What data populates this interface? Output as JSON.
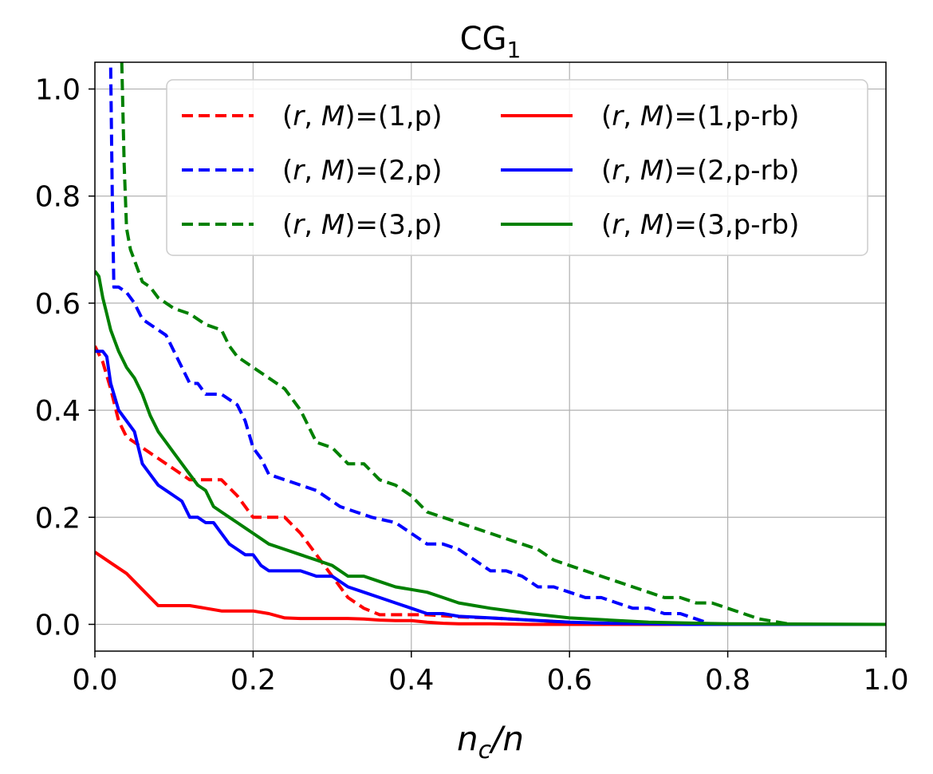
{
  "chart_data": {
    "type": "line",
    "title": "CG",
    "title_subscript": "1",
    "xlabel": "n_c/n",
    "ylabel": "",
    "xlim": [
      0.0,
      1.0
    ],
    "ylim": [
      -0.05,
      1.05
    ],
    "xticks": [
      0.0,
      0.2,
      0.4,
      0.6,
      0.8,
      1.0
    ],
    "xtick_labels": [
      "0.0",
      "0.2",
      "0.4",
      "0.6",
      "0.8",
      "1.0"
    ],
    "yticks": [
      0.0,
      0.2,
      0.4,
      0.6,
      0.8,
      1.0
    ],
    "ytick_labels": [
      "0.0",
      "0.2",
      "0.4",
      "0.6",
      "0.8",
      "1.0"
    ],
    "grid": true,
    "legend_position": "top-right",
    "legend_columns": 2,
    "series": [
      {
        "name": "(r, M)=(1,p)",
        "legend_prefix": "(",
        "legend_r": "r",
        "legend_sep": ", ",
        "legend_m": "M",
        "legend_suffix": ")=(1,p)",
        "color": "#ff0000",
        "style": "dashed",
        "x": [
          0.0,
          0.01,
          0.02,
          0.03,
          0.04,
          0.06,
          0.08,
          0.1,
          0.12,
          0.14,
          0.16,
          0.18,
          0.2,
          0.22,
          0.24,
          0.26,
          0.28,
          0.3,
          0.32,
          0.34,
          0.36,
          0.38,
          0.4,
          0.42,
          0.44,
          0.46,
          0.5,
          0.55,
          0.6,
          0.65,
          1.0
        ],
        "y": [
          0.52,
          0.49,
          0.44,
          0.38,
          0.35,
          0.33,
          0.31,
          0.29,
          0.27,
          0.27,
          0.27,
          0.24,
          0.2,
          0.2,
          0.2,
          0.17,
          0.13,
          0.09,
          0.05,
          0.03,
          0.018,
          0.018,
          0.018,
          0.018,
          0.016,
          0.014,
          0.012,
          0.008,
          0.004,
          0.0,
          0.0
        ]
      },
      {
        "name": "(r, M)=(2,p)",
        "legend_prefix": "(",
        "legend_r": "r",
        "legend_sep": ", ",
        "legend_m": "M",
        "legend_suffix": ")=(2,p)",
        "color": "#0000ff",
        "style": "dashed",
        "x": [
          0.02,
          0.022,
          0.024,
          0.03,
          0.04,
          0.05,
          0.06,
          0.08,
          0.09,
          0.1,
          0.11,
          0.12,
          0.13,
          0.14,
          0.16,
          0.18,
          0.19,
          0.2,
          0.21,
          0.22,
          0.24,
          0.26,
          0.28,
          0.3,
          0.31,
          0.33,
          0.35,
          0.38,
          0.4,
          0.42,
          0.44,
          0.46,
          0.48,
          0.5,
          0.52,
          0.54,
          0.56,
          0.58,
          0.6,
          0.62,
          0.64,
          0.66,
          0.68,
          0.7,
          0.72,
          0.74,
          0.76,
          0.78,
          1.0
        ],
        "y": [
          1.04,
          0.8,
          0.63,
          0.63,
          0.62,
          0.6,
          0.57,
          0.55,
          0.54,
          0.51,
          0.48,
          0.45,
          0.45,
          0.43,
          0.43,
          0.41,
          0.38,
          0.33,
          0.31,
          0.28,
          0.27,
          0.26,
          0.25,
          0.23,
          0.22,
          0.21,
          0.2,
          0.19,
          0.17,
          0.15,
          0.15,
          0.14,
          0.12,
          0.1,
          0.1,
          0.09,
          0.07,
          0.07,
          0.06,
          0.05,
          0.05,
          0.04,
          0.03,
          0.03,
          0.02,
          0.02,
          0.01,
          0.0,
          0.0
        ]
      },
      {
        "name": "(r, M)=(3,p)",
        "legend_prefix": "(",
        "legend_r": "r",
        "legend_sep": ", ",
        "legend_m": "M",
        "legend_suffix": ")=(3,p)",
        "color": "#008000",
        "style": "dashed",
        "x": [
          0.034,
          0.037,
          0.04,
          0.045,
          0.05,
          0.06,
          0.07,
          0.08,
          0.1,
          0.12,
          0.14,
          0.16,
          0.17,
          0.18,
          0.2,
          0.22,
          0.24,
          0.26,
          0.28,
          0.3,
          0.32,
          0.34,
          0.36,
          0.38,
          0.4,
          0.42,
          0.44,
          0.46,
          0.48,
          0.5,
          0.52,
          0.54,
          0.56,
          0.58,
          0.6,
          0.62,
          0.64,
          0.66,
          0.68,
          0.7,
          0.72,
          0.74,
          0.76,
          0.78,
          0.8,
          0.82,
          0.84,
          0.86,
          0.88,
          1.0
        ],
        "y": [
          1.05,
          0.86,
          0.74,
          0.7,
          0.68,
          0.64,
          0.63,
          0.61,
          0.59,
          0.58,
          0.56,
          0.55,
          0.52,
          0.5,
          0.48,
          0.46,
          0.44,
          0.4,
          0.34,
          0.33,
          0.3,
          0.3,
          0.27,
          0.26,
          0.24,
          0.21,
          0.2,
          0.19,
          0.18,
          0.17,
          0.16,
          0.15,
          0.14,
          0.12,
          0.11,
          0.1,
          0.09,
          0.08,
          0.07,
          0.06,
          0.05,
          0.05,
          0.04,
          0.04,
          0.03,
          0.02,
          0.01,
          0.005,
          0.0,
          0.0
        ]
      },
      {
        "name": "(r, M)=(1,p-rb)",
        "legend_prefix": "(",
        "legend_r": "r",
        "legend_sep": ", ",
        "legend_m": "M",
        "legend_suffix": ")=(1,p-rb)",
        "color": "#ff0000",
        "style": "solid",
        "x": [
          0.0,
          0.02,
          0.04,
          0.06,
          0.08,
          0.1,
          0.12,
          0.14,
          0.16,
          0.18,
          0.2,
          0.22,
          0.24,
          0.26,
          0.28,
          0.3,
          0.32,
          0.34,
          0.36,
          0.38,
          0.4,
          0.42,
          0.44,
          0.46,
          0.5,
          0.55,
          0.6,
          1.0
        ],
        "y": [
          0.135,
          0.115,
          0.095,
          0.065,
          0.035,
          0.035,
          0.035,
          0.03,
          0.025,
          0.025,
          0.025,
          0.02,
          0.012,
          0.011,
          0.011,
          0.011,
          0.011,
          0.01,
          0.008,
          0.007,
          0.007,
          0.004,
          0.002,
          0.001,
          0.001,
          0.0,
          0.0,
          0.0
        ]
      },
      {
        "name": "(r, M)=(2,p-rb)",
        "legend_prefix": "(",
        "legend_r": "r",
        "legend_sep": ", ",
        "legend_m": "M",
        "legend_suffix": ")=(2,p-rb)",
        "color": "#0000ff",
        "style": "solid",
        "x": [
          0.0,
          0.01,
          0.015,
          0.02,
          0.03,
          0.04,
          0.05,
          0.06,
          0.07,
          0.08,
          0.09,
          0.1,
          0.11,
          0.12,
          0.13,
          0.14,
          0.15,
          0.16,
          0.17,
          0.18,
          0.19,
          0.2,
          0.21,
          0.22,
          0.24,
          0.26,
          0.28,
          0.3,
          0.32,
          0.34,
          0.36,
          0.38,
          0.4,
          0.42,
          0.44,
          0.46,
          0.5,
          0.55,
          0.6,
          0.65,
          0.7,
          0.75,
          1.0
        ],
        "y": [
          0.51,
          0.51,
          0.5,
          0.45,
          0.4,
          0.38,
          0.36,
          0.3,
          0.28,
          0.26,
          0.25,
          0.24,
          0.23,
          0.2,
          0.2,
          0.19,
          0.19,
          0.17,
          0.15,
          0.14,
          0.13,
          0.13,
          0.11,
          0.1,
          0.1,
          0.1,
          0.09,
          0.09,
          0.07,
          0.06,
          0.05,
          0.04,
          0.03,
          0.02,
          0.02,
          0.015,
          0.012,
          0.008,
          0.004,
          0.002,
          0.001,
          0.0,
          0.0
        ]
      },
      {
        "name": "(r, M)=(3,p-rb)",
        "legend_prefix": "(",
        "legend_r": "r",
        "legend_sep": ", ",
        "legend_m": "M",
        "legend_suffix": ")=(3,p-rb)",
        "color": "#008000",
        "style": "solid",
        "x": [
          0.0,
          0.005,
          0.01,
          0.015,
          0.02,
          0.025,
          0.03,
          0.04,
          0.05,
          0.06,
          0.07,
          0.08,
          0.09,
          0.1,
          0.11,
          0.12,
          0.13,
          0.14,
          0.15,
          0.16,
          0.17,
          0.18,
          0.19,
          0.2,
          0.22,
          0.24,
          0.26,
          0.28,
          0.3,
          0.32,
          0.34,
          0.36,
          0.38,
          0.4,
          0.42,
          0.44,
          0.46,
          0.48,
          0.5,
          0.55,
          0.6,
          0.65,
          0.7,
          0.8,
          1.0
        ],
        "y": [
          0.66,
          0.65,
          0.61,
          0.58,
          0.55,
          0.53,
          0.51,
          0.48,
          0.46,
          0.43,
          0.39,
          0.36,
          0.34,
          0.32,
          0.3,
          0.28,
          0.26,
          0.25,
          0.22,
          0.21,
          0.2,
          0.19,
          0.18,
          0.17,
          0.15,
          0.14,
          0.13,
          0.12,
          0.11,
          0.09,
          0.09,
          0.08,
          0.07,
          0.065,
          0.06,
          0.05,
          0.04,
          0.035,
          0.03,
          0.02,
          0.012,
          0.008,
          0.004,
          0.001,
          0.0
        ]
      }
    ]
  }
}
